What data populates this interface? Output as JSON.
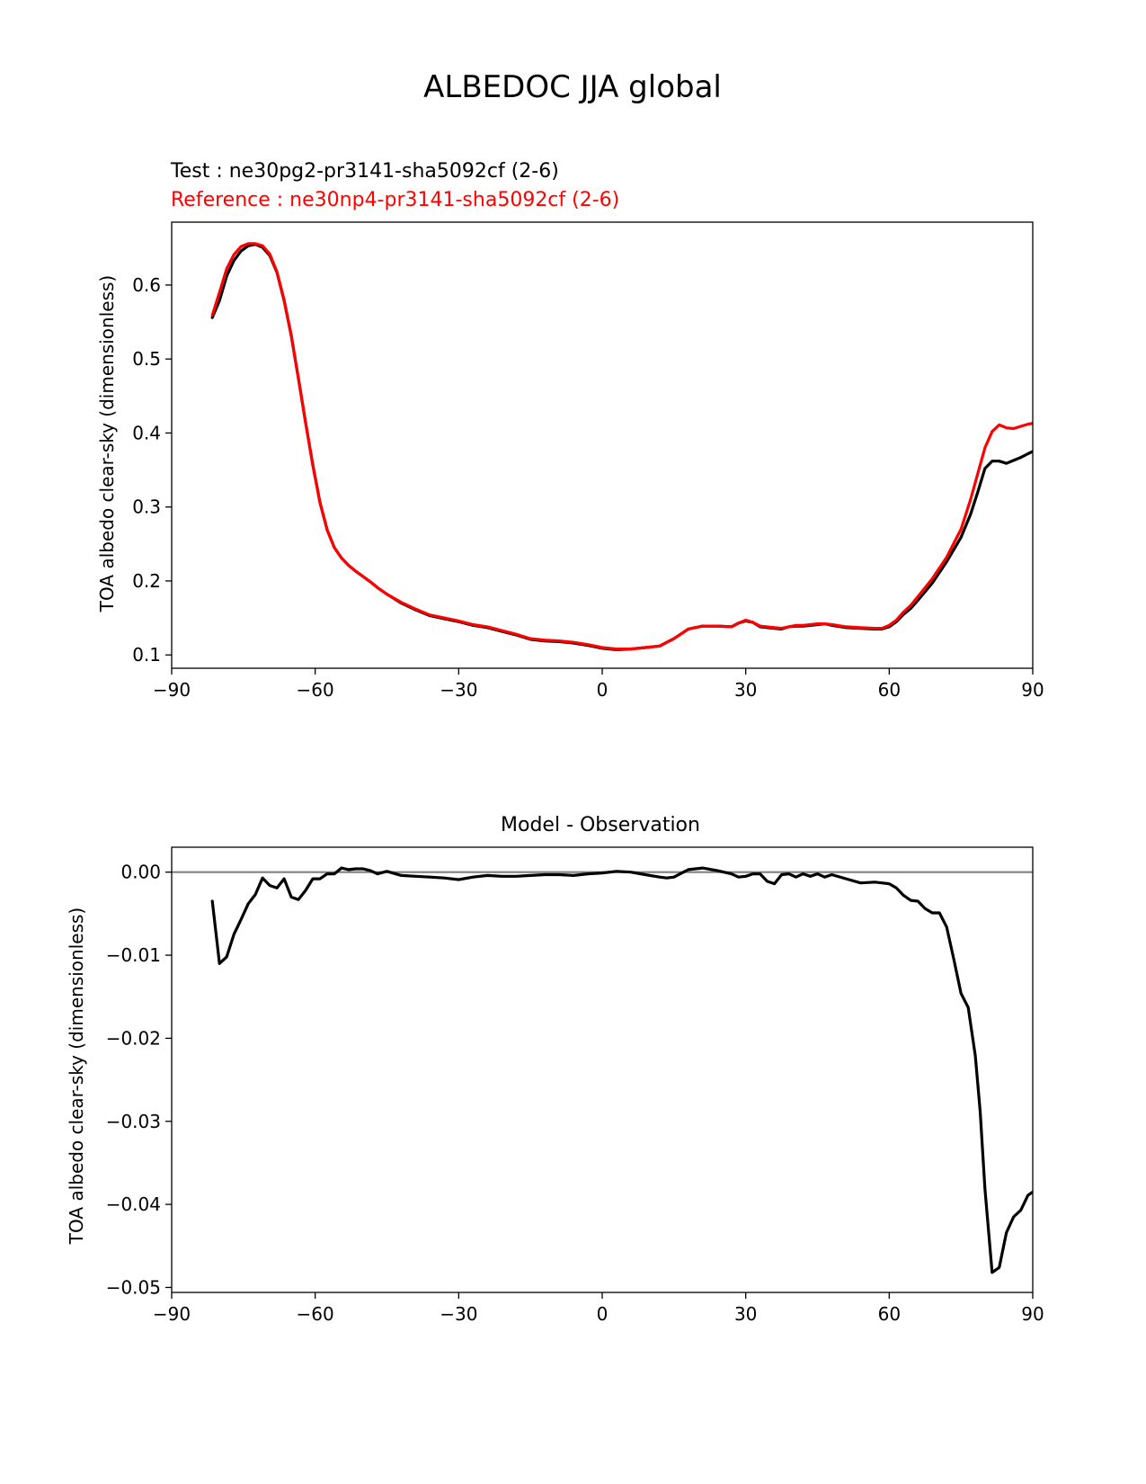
{
  "figure": {
    "title": "ALBEDOC JJA global"
  },
  "legend": {
    "test_label": "Test : ne30pg2-pr3141-sha5092cf (2-6)",
    "reference_label": "Reference : ne30np4-pr3141-sha5092cf (2-6)"
  },
  "colors": {
    "test": "#000000",
    "reference": "#ff0000",
    "zero_line": "#808080"
  },
  "chart_data": [
    {
      "type": "line",
      "title": "",
      "xlabel": "",
      "ylabel": "TOA albedo clear-sky (dimensionless)",
      "xlim": [
        -90,
        90
      ],
      "ylim": [
        0.082,
        0.685
      ],
      "xticks": [
        -90,
        -60,
        -30,
        0,
        30,
        60,
        90
      ],
      "xtick_labels": [
        "−90",
        "−60",
        "−30",
        "0",
        "30",
        "60",
        "90"
      ],
      "yticks": [
        0.1,
        0.2,
        0.3,
        0.4,
        0.5,
        0.6
      ],
      "ytick_labels": [
        "0.1",
        "0.2",
        "0.3",
        "0.4",
        "0.5",
        "0.6"
      ],
      "grid": false,
      "series": [
        {
          "name": "Test : ne30pg2-pr3141-sha5092cf (2-6)",
          "x": [
            -81.5,
            -80,
            -78.5,
            -77,
            -75.5,
            -74,
            -72.5,
            -71,
            -69.5,
            -68,
            -66.5,
            -65,
            -63.5,
            -62,
            -60.5,
            -59,
            -57.5,
            -56,
            -54.5,
            -53,
            -51.5,
            -50,
            -48.5,
            -47,
            -45,
            -42,
            -39,
            -36,
            -33,
            -30,
            -27,
            -24,
            -21,
            -18,
            -15,
            -12,
            -9,
            -6,
            -3,
            0,
            3,
            6,
            9,
            12,
            13.5,
            15,
            18,
            21,
            24,
            27,
            28.5,
            30,
            31.5,
            33,
            36,
            37.5,
            39,
            40.5,
            42,
            45,
            46.5,
            48,
            51,
            54,
            57,
            58.5,
            60,
            61.5,
            63,
            64.5,
            66,
            69,
            72,
            75,
            77,
            78.5,
            80,
            81.5,
            83,
            84.5,
            86,
            87.5,
            89,
            90
          ],
          "y": [
            0.556,
            0.579,
            0.612,
            0.633,
            0.646,
            0.653,
            0.655,
            0.651,
            0.64,
            0.617,
            0.579,
            0.531,
            0.474,
            0.414,
            0.357,
            0.306,
            0.269,
            0.245,
            0.231,
            0.221,
            0.213,
            0.206,
            0.199,
            0.191,
            0.182,
            0.17,
            0.161,
            0.153,
            0.149,
            0.145,
            0.14,
            0.137,
            0.132,
            0.127,
            0.121,
            0.119,
            0.118,
            0.116,
            0.113,
            0.109,
            0.107,
            0.108,
            0.11,
            0.112,
            0.117,
            0.122,
            0.135,
            0.139,
            0.139,
            0.138,
            0.143,
            0.146,
            0.144,
            0.138,
            0.136,
            0.135,
            0.138,
            0.139,
            0.139,
            0.141,
            0.142,
            0.14,
            0.137,
            0.136,
            0.135,
            0.135,
            0.138,
            0.145,
            0.155,
            0.163,
            0.174,
            0.197,
            0.226,
            0.259,
            0.29,
            0.32,
            0.352,
            0.362,
            0.362,
            0.359,
            0.363,
            0.367,
            0.372,
            0.375
          ]
        },
        {
          "name": "Reference : ne30np4-pr3141-sha5092cf (2-6)",
          "x": [
            -81.5,
            -80,
            -78.5,
            -77,
            -75.5,
            -74,
            -72.5,
            -71,
            -69.5,
            -68,
            -66.5,
            -65,
            -63.5,
            -62,
            -60.5,
            -59,
            -57.5,
            -56,
            -54.5,
            -53,
            -51.5,
            -50,
            -48.5,
            -47,
            -45,
            -42,
            -39,
            -36,
            -33,
            -30,
            -27,
            -24,
            -21,
            -18,
            -15,
            -12,
            -9,
            -6,
            -3,
            0,
            3,
            6,
            9,
            12,
            13.5,
            15,
            18,
            21,
            24,
            27,
            28.5,
            30,
            31.5,
            33,
            36,
            37.5,
            39,
            40.5,
            42,
            45,
            46.5,
            48,
            51,
            54,
            57,
            58.5,
            60,
            61.5,
            63,
            64.5,
            66,
            69,
            72,
            75,
            77,
            78.5,
            80,
            81.5,
            83,
            84.5,
            86,
            87.5,
            89,
            90
          ],
          "y": [
            0.559,
            0.59,
            0.622,
            0.641,
            0.652,
            0.656,
            0.656,
            0.653,
            0.642,
            0.618,
            0.58,
            0.532,
            0.474,
            0.414,
            0.357,
            0.306,
            0.269,
            0.245,
            0.231,
            0.221,
            0.213,
            0.206,
            0.199,
            0.191,
            0.182,
            0.171,
            0.162,
            0.154,
            0.15,
            0.146,
            0.141,
            0.138,
            0.133,
            0.128,
            0.122,
            0.12,
            0.119,
            0.117,
            0.114,
            0.11,
            0.108,
            0.108,
            0.11,
            0.112,
            0.117,
            0.122,
            0.135,
            0.139,
            0.139,
            0.138,
            0.143,
            0.147,
            0.144,
            0.139,
            0.137,
            0.136,
            0.138,
            0.14,
            0.14,
            0.142,
            0.142,
            0.141,
            0.138,
            0.137,
            0.136,
            0.136,
            0.14,
            0.147,
            0.158,
            0.167,
            0.179,
            0.203,
            0.232,
            0.27,
            0.31,
            0.345,
            0.38,
            0.402,
            0.411,
            0.407,
            0.406,
            0.409,
            0.412,
            0.413
          ]
        }
      ]
    },
    {
      "type": "line",
      "title": "Model - Observation",
      "xlabel": "",
      "ylabel": "TOA albedo clear-sky (dimensionless)",
      "xlim": [
        -90,
        90
      ],
      "ylim": [
        -0.0506,
        0.003
      ],
      "xticks": [
        -90,
        -60,
        -30,
        0,
        30,
        60,
        90
      ],
      "xtick_labels": [
        "−90",
        "−60",
        "−30",
        "0",
        "30",
        "60",
        "90"
      ],
      "yticks": [
        0.0,
        -0.01,
        -0.02,
        -0.03,
        -0.04,
        -0.05
      ],
      "ytick_labels": [
        "0.00",
        "−0.01",
        "−0.02",
        "−0.03",
        "−0.04",
        "−0.05"
      ],
      "grid": false,
      "zero_line": 0.0,
      "series": [
        {
          "name": "",
          "x": [
            -81.5,
            -80,
            -78.5,
            -77,
            -75.5,
            -74,
            -72.5,
            -71,
            -69.5,
            -68,
            -66.5,
            -65,
            -63.5,
            -62,
            -60.5,
            -59,
            -57.5,
            -56,
            -54.5,
            -53,
            -51.5,
            -50,
            -48.5,
            -47,
            -45,
            -42,
            -39,
            -36,
            -33,
            -30,
            -27,
            -24,
            -21,
            -18,
            -15,
            -12,
            -9,
            -6,
            -3,
            0,
            3,
            6,
            9,
            12,
            13.5,
            15,
            18,
            21,
            24,
            27,
            28.5,
            30,
            31.5,
            33,
            34.5,
            36,
            37.5,
            39,
            40.5,
            42,
            43.5,
            45,
            46.5,
            48,
            51,
            54,
            57,
            58.5,
            60,
            61.5,
            63,
            64.5,
            66,
            67.5,
            69,
            70.5,
            72,
            73.5,
            75,
            76.5,
            78,
            79,
            80,
            81.5,
            83,
            84.5,
            86,
            87.5,
            89,
            90
          ],
          "y": [
            -0.0035,
            -0.011,
            -0.0102,
            -0.0075,
            -0.0057,
            -0.0038,
            -0.0027,
            -0.0007,
            -0.0016,
            -0.0019,
            -0.0008,
            -0.003,
            -0.0033,
            -0.0022,
            -0.0008,
            -0.0008,
            -0.0002,
            -0.0002,
            0.0005,
            0.0003,
            0.0004,
            0.0004,
            0.0002,
            -0.0002,
            0.0001,
            -0.0004,
            -0.0005,
            -0.0006,
            -0.0007,
            -0.0009,
            -0.0006,
            -0.0004,
            -0.0005,
            -0.0005,
            -0.0004,
            -0.0003,
            -0.0003,
            -0.0004,
            -0.0002,
            -0.0001,
            0.0001,
            0.0,
            -0.0003,
            -0.0006,
            -0.0007,
            -0.0006,
            0.0003,
            0.0005,
            0.0002,
            -0.0002,
            -0.0006,
            -0.0005,
            -0.0002,
            -0.0002,
            -0.0011,
            -0.0014,
            -0.0003,
            -0.0002,
            -0.0006,
            -0.0002,
            -0.0005,
            -0.0002,
            -0.0006,
            -0.0003,
            -0.0008,
            -0.0013,
            -0.0012,
            -0.0013,
            -0.0014,
            -0.0019,
            -0.0028,
            -0.0034,
            -0.0035,
            -0.0044,
            -0.0049,
            -0.0049,
            -0.0066,
            -0.0105,
            -0.0146,
            -0.0163,
            -0.0221,
            -0.0288,
            -0.0381,
            -0.0482,
            -0.0476,
            -0.0434,
            -0.0415,
            -0.0407,
            -0.0389,
            -0.0385
          ]
        }
      ]
    }
  ]
}
